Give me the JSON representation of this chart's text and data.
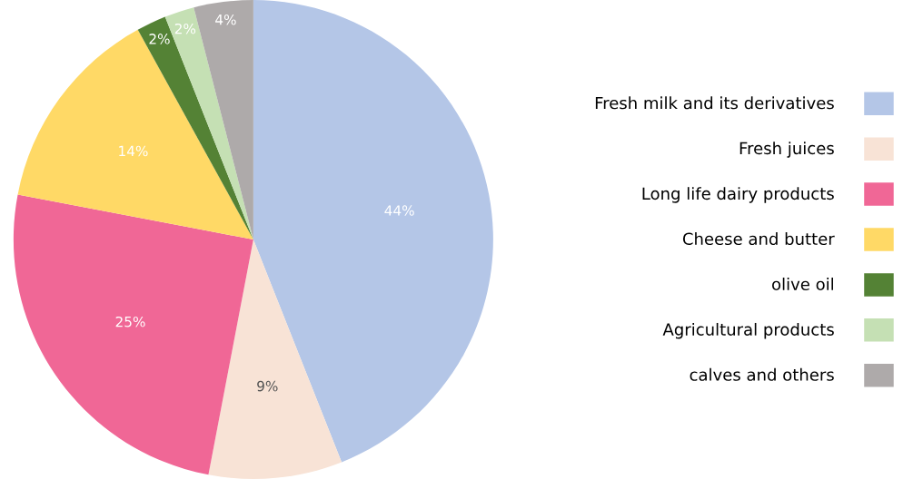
{
  "chart_data": {
    "type": "pie",
    "categories": [
      "Fresh milk and its derivatives",
      "Fresh juices",
      "Long life dairy products",
      "Cheese and butter",
      "olive oil",
      "Agricultural products",
      "calves and others"
    ],
    "values": [
      44,
      9,
      25,
      14,
      2,
      2,
      4
    ],
    "colors": [
      "#b4c6e7",
      "#f8e3d6",
      "#f06796",
      "#ffd966",
      "#548235",
      "#c5e0b4",
      "#aeaaaa"
    ],
    "value_labels": [
      "44%",
      "9%",
      "25%",
      "14%",
      "2%",
      "2%",
      "4%"
    ],
    "legend": "right"
  }
}
